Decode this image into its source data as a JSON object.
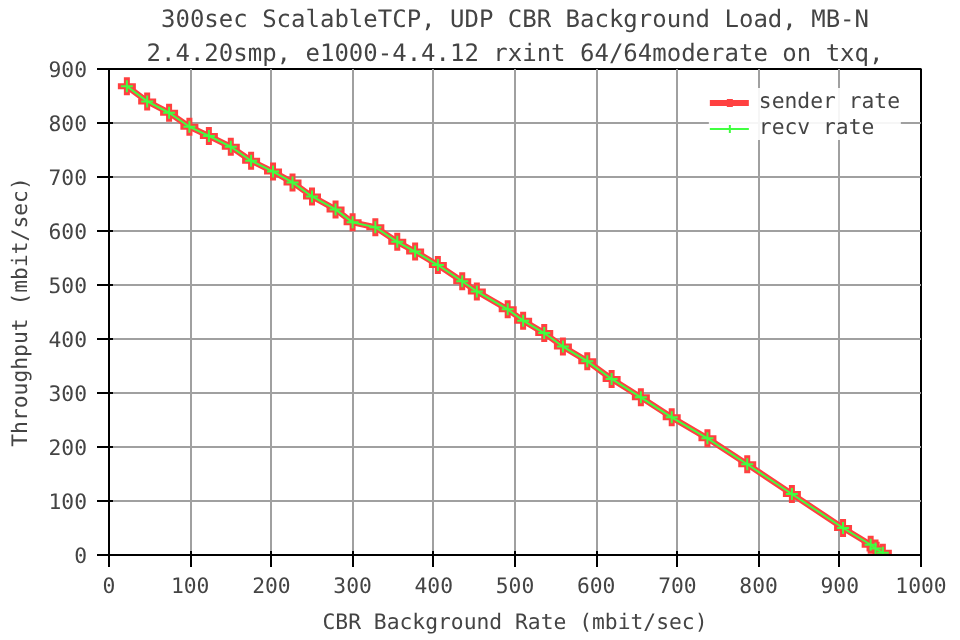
{
  "chart_data": {
    "type": "line",
    "title": "300sec ScalableTCP, UDP CBR Background Load, MB-N",
    "subtitle": "2.4.20smp, e1000-4.4.12 rxint 64/64moderate on txq,",
    "xlabel": "CBR Background Rate (mbit/sec)",
    "ylabel": "Throughput (mbit/sec)",
    "x": [
      22,
      47,
      74,
      99,
      123,
      150,
      175,
      202,
      226,
      250,
      279,
      300,
      328,
      355,
      377,
      405,
      435,
      453,
      491,
      510,
      536,
      559,
      589,
      619,
      655,
      693,
      737,
      786,
      841,
      904,
      938,
      944,
      953
    ],
    "series": [
      {
        "name": "sender rate",
        "color": "#ff4040",
        "values": [
          868,
          840,
          819,
          793,
          776,
          756,
          730,
          710,
          690,
          664,
          640,
          616,
          607,
          580,
          562,
          537,
          507,
          488,
          455,
          434,
          411,
          386,
          359,
          326,
          292,
          255,
          216,
          168,
          113,
          50,
          19,
          12,
          4
        ]
      },
      {
        "name": "recv rate",
        "color": "#40ff40",
        "values": [
          868,
          840,
          819,
          793,
          776,
          756,
          730,
          710,
          690,
          664,
          640,
          616,
          607,
          580,
          562,
          537,
          507,
          488,
          455,
          434,
          411,
          386,
          359,
          326,
          292,
          255,
          216,
          168,
          113,
          50,
          19,
          12,
          4
        ]
      }
    ],
    "xlim": [
      0,
      1000
    ],
    "ylim": [
      0,
      900
    ],
    "xticks": [
      0,
      100,
      200,
      300,
      400,
      500,
      600,
      700,
      800,
      900,
      1000
    ],
    "yticks": [
      0,
      100,
      200,
      300,
      400,
      500,
      600,
      700,
      800,
      900
    ],
    "grid": true,
    "legend": "top right",
    "marker": "cross",
    "line_style": "solid"
  }
}
